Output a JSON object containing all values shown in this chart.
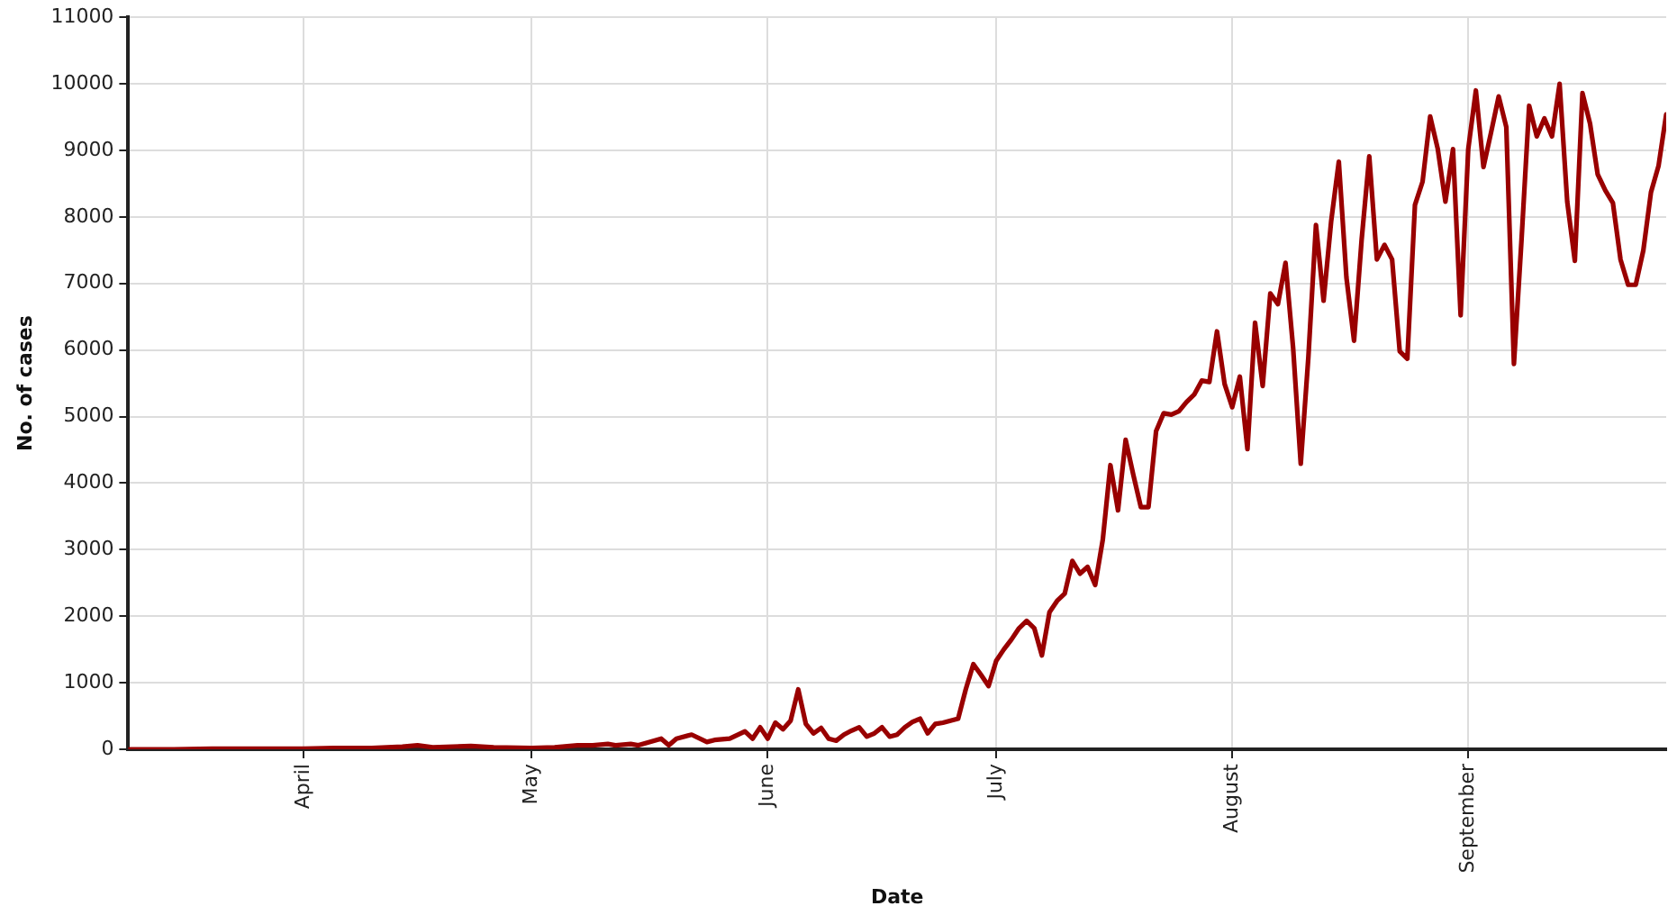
{
  "chart_data": {
    "type": "line",
    "xlabel": "Date",
    "ylabel": "No. of cases",
    "x": [
      "--03-09",
      "--03-15",
      "--03-20",
      "--03-25",
      "--04-01",
      "--04-05",
      "--04-10",
      "--04-14",
      "--04-16",
      "--04-18",
      "--04-23",
      "--04-26",
      "--05-01",
      "--05-04",
      "--05-07",
      "--05-09",
      "--05-11",
      "--05-12",
      "--05-14",
      "--05-15",
      "--05-18",
      "--05-19",
      "--05-20",
      "--05-22",
      "--05-24",
      "--05-25",
      "--05-27",
      "--05-29",
      "--05-30",
      "--05-31",
      "--06-01",
      "--06-02",
      "--06-03",
      "--06-04",
      "--06-05",
      "--06-06",
      "--06-07",
      "--06-08",
      "--06-09",
      "--06-10",
      "--06-11",
      "--06-12",
      "--06-13",
      "--06-14",
      "--06-15",
      "--06-16",
      "--06-17",
      "--06-18",
      "--06-19",
      "--06-20",
      "--06-21",
      "--06-22",
      "--06-23",
      "--06-24",
      "--06-25",
      "--06-26",
      "--06-27",
      "--06-28",
      "--06-29",
      "--06-30",
      "--07-01",
      "--07-02",
      "--07-03",
      "--07-04",
      "--07-05",
      "--07-06",
      "--07-07",
      "--07-08",
      "--07-09",
      "--07-10",
      "--07-11",
      "--07-12",
      "--07-13",
      "--07-14",
      "--07-15",
      "--07-16",
      "--07-17",
      "--07-18",
      "--07-19",
      "--07-20",
      "--07-21",
      "--07-22",
      "--07-23",
      "--07-24",
      "--07-25",
      "--07-26",
      "--07-27",
      "--07-28",
      "--07-29",
      "--07-30",
      "--07-31",
      "--08-01",
      "--08-02",
      "--08-03",
      "--08-04",
      "--08-05",
      "--08-06",
      "--08-07",
      "--08-08",
      "--08-09",
      "--08-10",
      "--08-11",
      "--08-12",
      "--08-13",
      "--08-14",
      "--08-15",
      "--08-16",
      "--08-17",
      "--08-18",
      "--08-19",
      "--08-20",
      "--08-21",
      "--08-22",
      "--08-23",
      "--08-24",
      "--08-25",
      "--08-26",
      "--08-27",
      "--08-28",
      "--08-29",
      "--08-30",
      "--08-31",
      "--09-01",
      "--09-02",
      "--09-03",
      "--09-04",
      "--09-05",
      "--09-06",
      "--09-07",
      "--09-08",
      "--09-09",
      "--09-10",
      "--09-11",
      "--09-12",
      "--09-13",
      "--09-14",
      "--09-15",
      "--09-16",
      "--09-17",
      "--09-18",
      "--09-19",
      "--09-20",
      "--09-21",
      "--09-22",
      "--09-23",
      "--09-24",
      "--09-25",
      "--09-26",
      "--09-27"
    ],
    "series": [
      {
        "color": "#990000",
        "values": [
          0,
          0,
          10,
          10,
          10,
          20,
          20,
          40,
          60,
          30,
          50,
          30,
          20,
          30,
          60,
          60,
          80,
          60,
          80,
          60,
          160,
          60,
          160,
          220,
          110,
          140,
          160,
          270,
          160,
          330,
          160,
          400,
          300,
          430,
          900,
          380,
          240,
          320,
          160,
          130,
          220,
          280,
          330,
          190,
          240,
          330,
          190,
          220,
          330,
          410,
          460,
          240,
          380,
          400,
          430,
          460,
          900,
          1280,
          1120,
          950,
          1330,
          1500,
          1650,
          1820,
          1930,
          1820,
          1410,
          2060,
          2230,
          2340,
          2830,
          2640,
          2740,
          2470,
          3150,
          4270,
          3590,
          4650,
          4130,
          3640,
          3640,
          4780,
          5050,
          5030,
          5080,
          5220,
          5330,
          5540,
          5520,
          6280,
          5490,
          5140,
          5600,
          4510,
          6410,
          5460,
          6850,
          6690,
          7310,
          6030,
          4290,
          5890,
          7880,
          6740,
          7940,
          8830,
          7090,
          6140,
          7660,
          8910,
          7360,
          7580,
          7360,
          5980,
          5870,
          8180,
          8530,
          9510,
          9020,
          8230,
          9020,
          6520,
          9020,
          9900,
          8750,
          9270,
          9810,
          9350,
          5790,
          7660,
          9670,
          9210,
          9480,
          9210,
          10000,
          8230,
          7340,
          9860,
          9400,
          8640,
          8400,
          8210,
          7360,
          6980,
          6980,
          7500,
          8370,
          8770,
          9540
        ]
      }
    ],
    "xlim": [
      "--03-09",
      "--09-27"
    ],
    "xticks": [
      {
        "value": "--04-01",
        "label": "April"
      },
      {
        "value": "--05-01",
        "label": "May"
      },
      {
        "value": "--06-01",
        "label": "June"
      },
      {
        "value": "--07-01",
        "label": "July"
      },
      {
        "value": "--08-01",
        "label": "August"
      },
      {
        "value": "--09-01",
        "label": "September"
      }
    ],
    "ylim": [
      0,
      11000
    ],
    "yticks": [
      0,
      1000,
      2000,
      3000,
      4000,
      5000,
      6000,
      7000,
      8000,
      9000,
      10000,
      11000
    ],
    "grid": true,
    "legend": false,
    "marker": "none",
    "line_style": "solid"
  }
}
